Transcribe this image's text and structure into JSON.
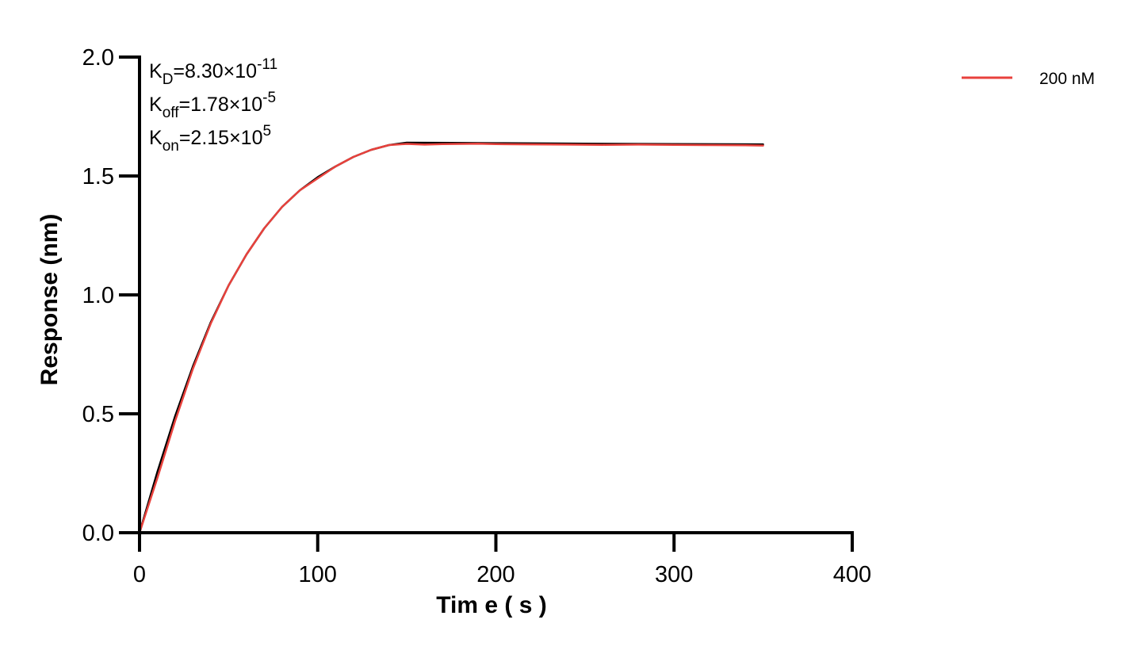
{
  "chart_data": {
    "type": "line",
    "xlabel": "Tim e ( s )",
    "ylabel": "Response (nm)",
    "xlim": [
      0,
      400
    ],
    "ylim": [
      0,
      2.0
    ],
    "xticks": [
      0,
      100,
      200,
      300,
      400
    ],
    "yticks": [
      0,
      0.5,
      1.0,
      1.5,
      2.0
    ],
    "xtick_labels": [
      "0",
      "100",
      "200",
      "300",
      "400"
    ],
    "ytick_labels": [
      "0.0",
      "0.5",
      "1.0",
      "1.5",
      "2.0"
    ],
    "grid": false,
    "legend_position": "top-right",
    "annotations": [
      {
        "base": "K",
        "sub": "D",
        "eq": "=8.30×10",
        "sup": "-11"
      },
      {
        "base": "K",
        "sub": "off",
        "eq": "=1.78×10",
        "sup": "-5"
      },
      {
        "base": "K",
        "sub": "on",
        "eq": "=2.15×10",
        "sup": "5"
      }
    ],
    "series": [
      {
        "name": "200 nM",
        "role": "measured",
        "color": "#e8413c",
        "x": [
          0,
          10,
          20,
          30,
          40,
          50,
          60,
          70,
          80,
          90,
          100,
          110,
          120,
          130,
          140,
          150,
          160,
          170,
          180,
          190,
          200,
          220,
          240,
          260,
          280,
          300,
          320,
          340,
          350
        ],
        "y": [
          0.0,
          0.23,
          0.47,
          0.69,
          0.88,
          1.04,
          1.17,
          1.28,
          1.37,
          1.44,
          1.49,
          1.54,
          1.58,
          1.61,
          1.63,
          1.635,
          1.632,
          1.634,
          1.635,
          1.636,
          1.634,
          1.633,
          1.632,
          1.631,
          1.632,
          1.631,
          1.63,
          1.629,
          1.628
        ]
      },
      {
        "name": "",
        "role": "fit",
        "color": "#000000",
        "x": [
          0,
          10,
          20,
          30,
          40,
          50,
          60,
          70,
          80,
          90,
          100,
          110,
          120,
          130,
          140,
          150,
          175,
          200,
          250,
          300,
          350
        ],
        "y": [
          0.0,
          0.255,
          0.49,
          0.7,
          0.885,
          1.04,
          1.17,
          1.28,
          1.37,
          1.44,
          1.495,
          1.54,
          1.58,
          1.61,
          1.63,
          1.64,
          1.639,
          1.638,
          1.636,
          1.634,
          1.633
        ]
      }
    ]
  }
}
